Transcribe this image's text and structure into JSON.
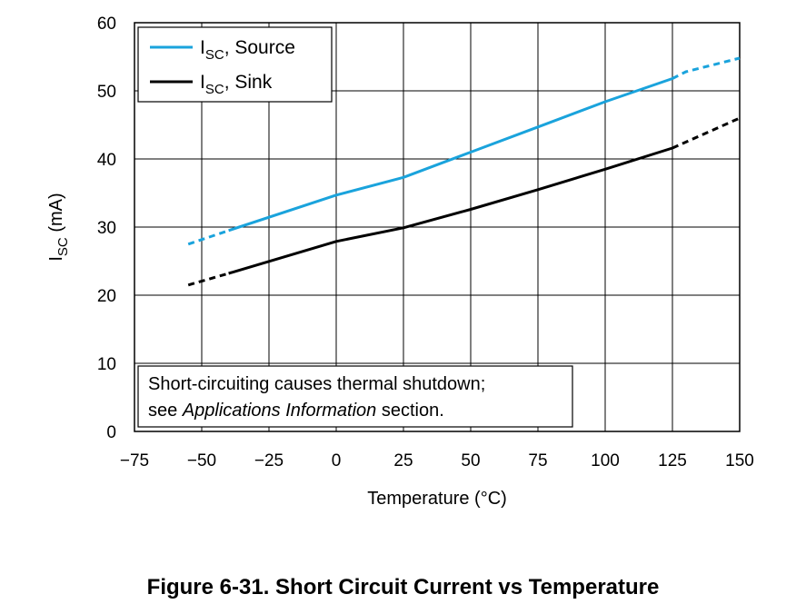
{
  "caption": "Figure 6-31. Short Circuit Current vs Temperature",
  "chart_data": {
    "type": "line",
    "xlabel": "Temperature (°C)",
    "ylabel_main": "I",
    "ylabel_sub": "SC",
    "ylabel_unit": " (mA)",
    "xlim": [
      -75,
      150
    ],
    "ylim": [
      0,
      60
    ],
    "xticks": [
      -75,
      -50,
      -25,
      0,
      25,
      50,
      75,
      100,
      125,
      150
    ],
    "xtick_labels": [
      "−75",
      "−50",
      "−25",
      "0",
      "25",
      "50",
      "75",
      "100",
      "125",
      "150"
    ],
    "yticks": [
      0,
      10,
      20,
      30,
      40,
      50,
      60
    ],
    "ytick_labels": [
      "0",
      "10",
      "20",
      "30",
      "40",
      "50",
      "60"
    ],
    "grid": true,
    "legend_position": "top-left",
    "note_line1": "Short-circuiting causes thermal shutdown;",
    "note_line2_pre": "see ",
    "note_line2_italic": "Applications Information",
    "note_line2_post": " section.",
    "series": [
      {
        "name_main": "I",
        "name_sub": "SC",
        "name_rest": ", Source",
        "color": "#1aa3dc",
        "x": [
          -55,
          -40,
          0,
          25,
          50,
          75,
          100,
          125,
          130,
          150
        ],
        "y": [
          27.5,
          29.5,
          34.7,
          37.3,
          41,
          44.7,
          48.4,
          51.8,
          52.8,
          54.8
        ],
        "dashed_before": -40,
        "dashed_after": 125
      },
      {
        "name_main": "I",
        "name_sub": "SC",
        "name_rest": ", Sink",
        "color": "#000000",
        "x": [
          -55,
          -40,
          0,
          25,
          50,
          75,
          100,
          125,
          150
        ],
        "y": [
          21.5,
          23.2,
          27.9,
          29.9,
          32.6,
          35.5,
          38.5,
          41.6,
          46.0
        ],
        "dashed_before": -40,
        "dashed_after": 125
      }
    ]
  }
}
